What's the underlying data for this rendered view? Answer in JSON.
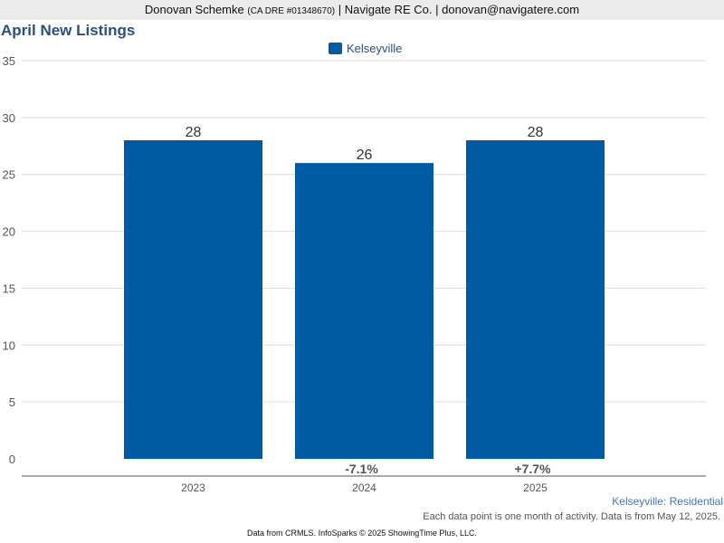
{
  "header": {
    "agent_name": "Donovan Schemke",
    "license": "(CA DRE #01348670)",
    "company": "| Navigate RE Co. | donovan@navigatere.com"
  },
  "chart_data": {
    "type": "bar",
    "title": "April New Listings",
    "categories": [
      "2023",
      "2024",
      "2025"
    ],
    "series": [
      {
        "name": "Kelseyville",
        "values": [
          28,
          26,
          28
        ],
        "color": "#005aa4"
      }
    ],
    "data_labels": [
      "28",
      "26",
      "28"
    ],
    "change_labels": [
      "",
      "-7.1%",
      "+7.7%"
    ],
    "ylim": [
      0,
      35
    ],
    "yticks": [
      0,
      5,
      10,
      15,
      20,
      25,
      30,
      35
    ],
    "grid": true,
    "legend_position": "top-center",
    "xlabel": "",
    "ylabel": ""
  },
  "footer": {
    "subtitle": "Kelseyville: Residential",
    "note": "Each data point is one month of activity. Data is from May 12, 2025.",
    "credit": "Data from CRMLS. InfoSparks © 2025 ShowingTime Plus, LLC."
  }
}
